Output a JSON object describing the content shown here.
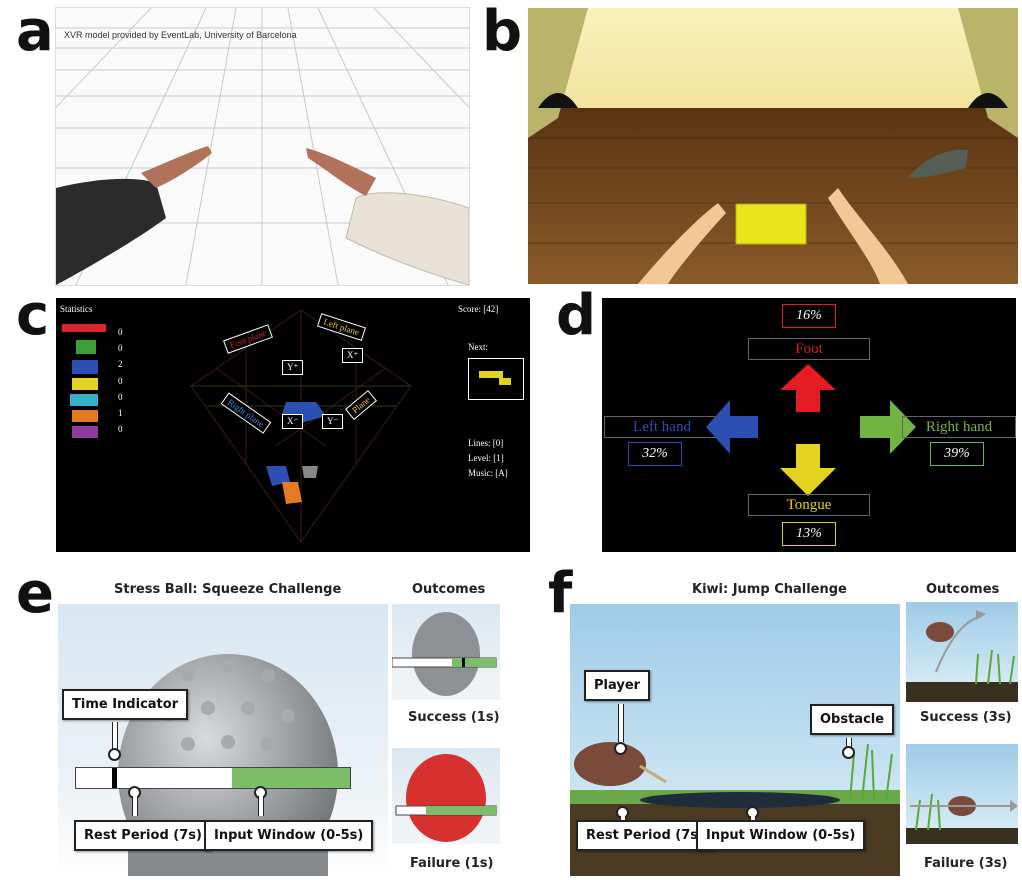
{
  "letters": {
    "a": "a",
    "b": "b",
    "c": "c",
    "d": "d",
    "e": "e",
    "f": "f"
  },
  "panel_a": {
    "credit": "XVR model provided by EventLab, University of Barcelona"
  },
  "panel_c": {
    "stats_title": "Statistics",
    "stats_counts": [
      "0",
      "0",
      "2",
      "0",
      "0",
      "1",
      "0"
    ],
    "piece_colors": [
      "#d4262b",
      "#3e9f3a",
      "#2b4fb2",
      "#e3d21f",
      "#35b3c9",
      "#e67a22",
      "#8e3c9e"
    ],
    "plane_labels": {
      "foot": "Foot plane",
      "left": "Left plane",
      "right": "Right plane",
      "plane": "Plane"
    },
    "axis_labels": {
      "y_plus": "Y⁺",
      "x_plus": "X⁺",
      "x_minus": "X⁻",
      "y_minus": "Y⁻"
    },
    "score": "Score: [42]",
    "next_label": "Next:",
    "lines": "Lines: [0]",
    "level": "Level: [1]",
    "music": "Music: [A]"
  },
  "panel_d": {
    "foot": {
      "label": "Foot",
      "pct": "16%",
      "color": "#e51c24"
    },
    "left": {
      "label": "Left hand",
      "pct": "32%",
      "color": "#2b4fb2"
    },
    "right": {
      "label": "Right hand",
      "pct": "39%",
      "color": "#72b443"
    },
    "tongue": {
      "label": "Tongue",
      "pct": "13%",
      "color": "#e3d21f"
    }
  },
  "panel_e": {
    "title": "Stress Ball: Squeeze Challenge",
    "outcomes_title": "Outcomes",
    "time_indicator": "Time Indicator",
    "rest_period": "Rest Period (7s)",
    "input_window": "Input Window (0-5s)",
    "success": "Success (1s)",
    "failure": "Failure (1s)"
  },
  "panel_f": {
    "title": "Kiwi: Jump Challenge",
    "outcomes_title": "Outcomes",
    "player": "Player",
    "obstacle": "Obstacle",
    "rest_period": "Rest Period (7s)",
    "input_window": "Input Window (0-5s)",
    "success": "Success (3s)",
    "failure": "Failure (3s)"
  }
}
